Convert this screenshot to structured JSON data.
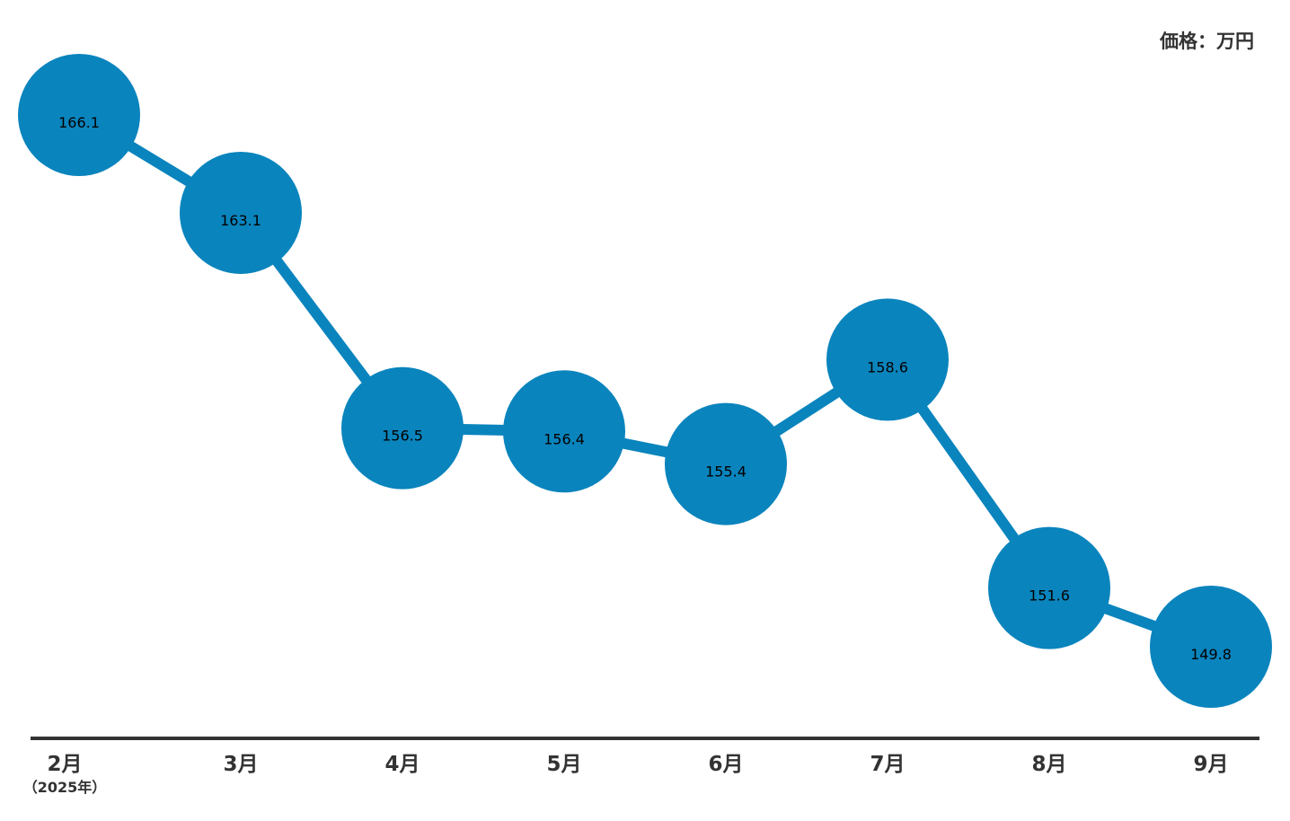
{
  "unit_label": "価格：万円",
  "colors": {
    "series": "#0a84bd",
    "axis": "#333333",
    "value_text": "#ffffff"
  },
  "chart_data": {
    "type": "line",
    "categories": [
      "2月",
      "3月",
      "4月",
      "5月",
      "6月",
      "7月",
      "8月",
      "9月"
    ],
    "category_sub": [
      "（2025年）",
      "",
      "",
      "",
      "",
      "",
      "",
      ""
    ],
    "values": [
      166.1,
      163.1,
      156.5,
      156.4,
      155.4,
      158.6,
      151.6,
      149.8
    ],
    "value_labels": [
      {
        "int": "166",
        "dec": ".1"
      },
      {
        "int": "163",
        "dec": ".1"
      },
      {
        "int": "156",
        "dec": ".5"
      },
      {
        "int": "156",
        "dec": ".4"
      },
      {
        "int": "155",
        "dec": ".4"
      },
      {
        "int": "158",
        "dec": ".6"
      },
      {
        "int": "151",
        "dec": ".6"
      },
      {
        "int": "149",
        "dec": ".8"
      }
    ],
    "title": "",
    "xlabel": "",
    "ylabel": "価格：万円",
    "ylim": [
      149.8,
      166.1
    ],
    "grid": false,
    "legend": "none"
  }
}
